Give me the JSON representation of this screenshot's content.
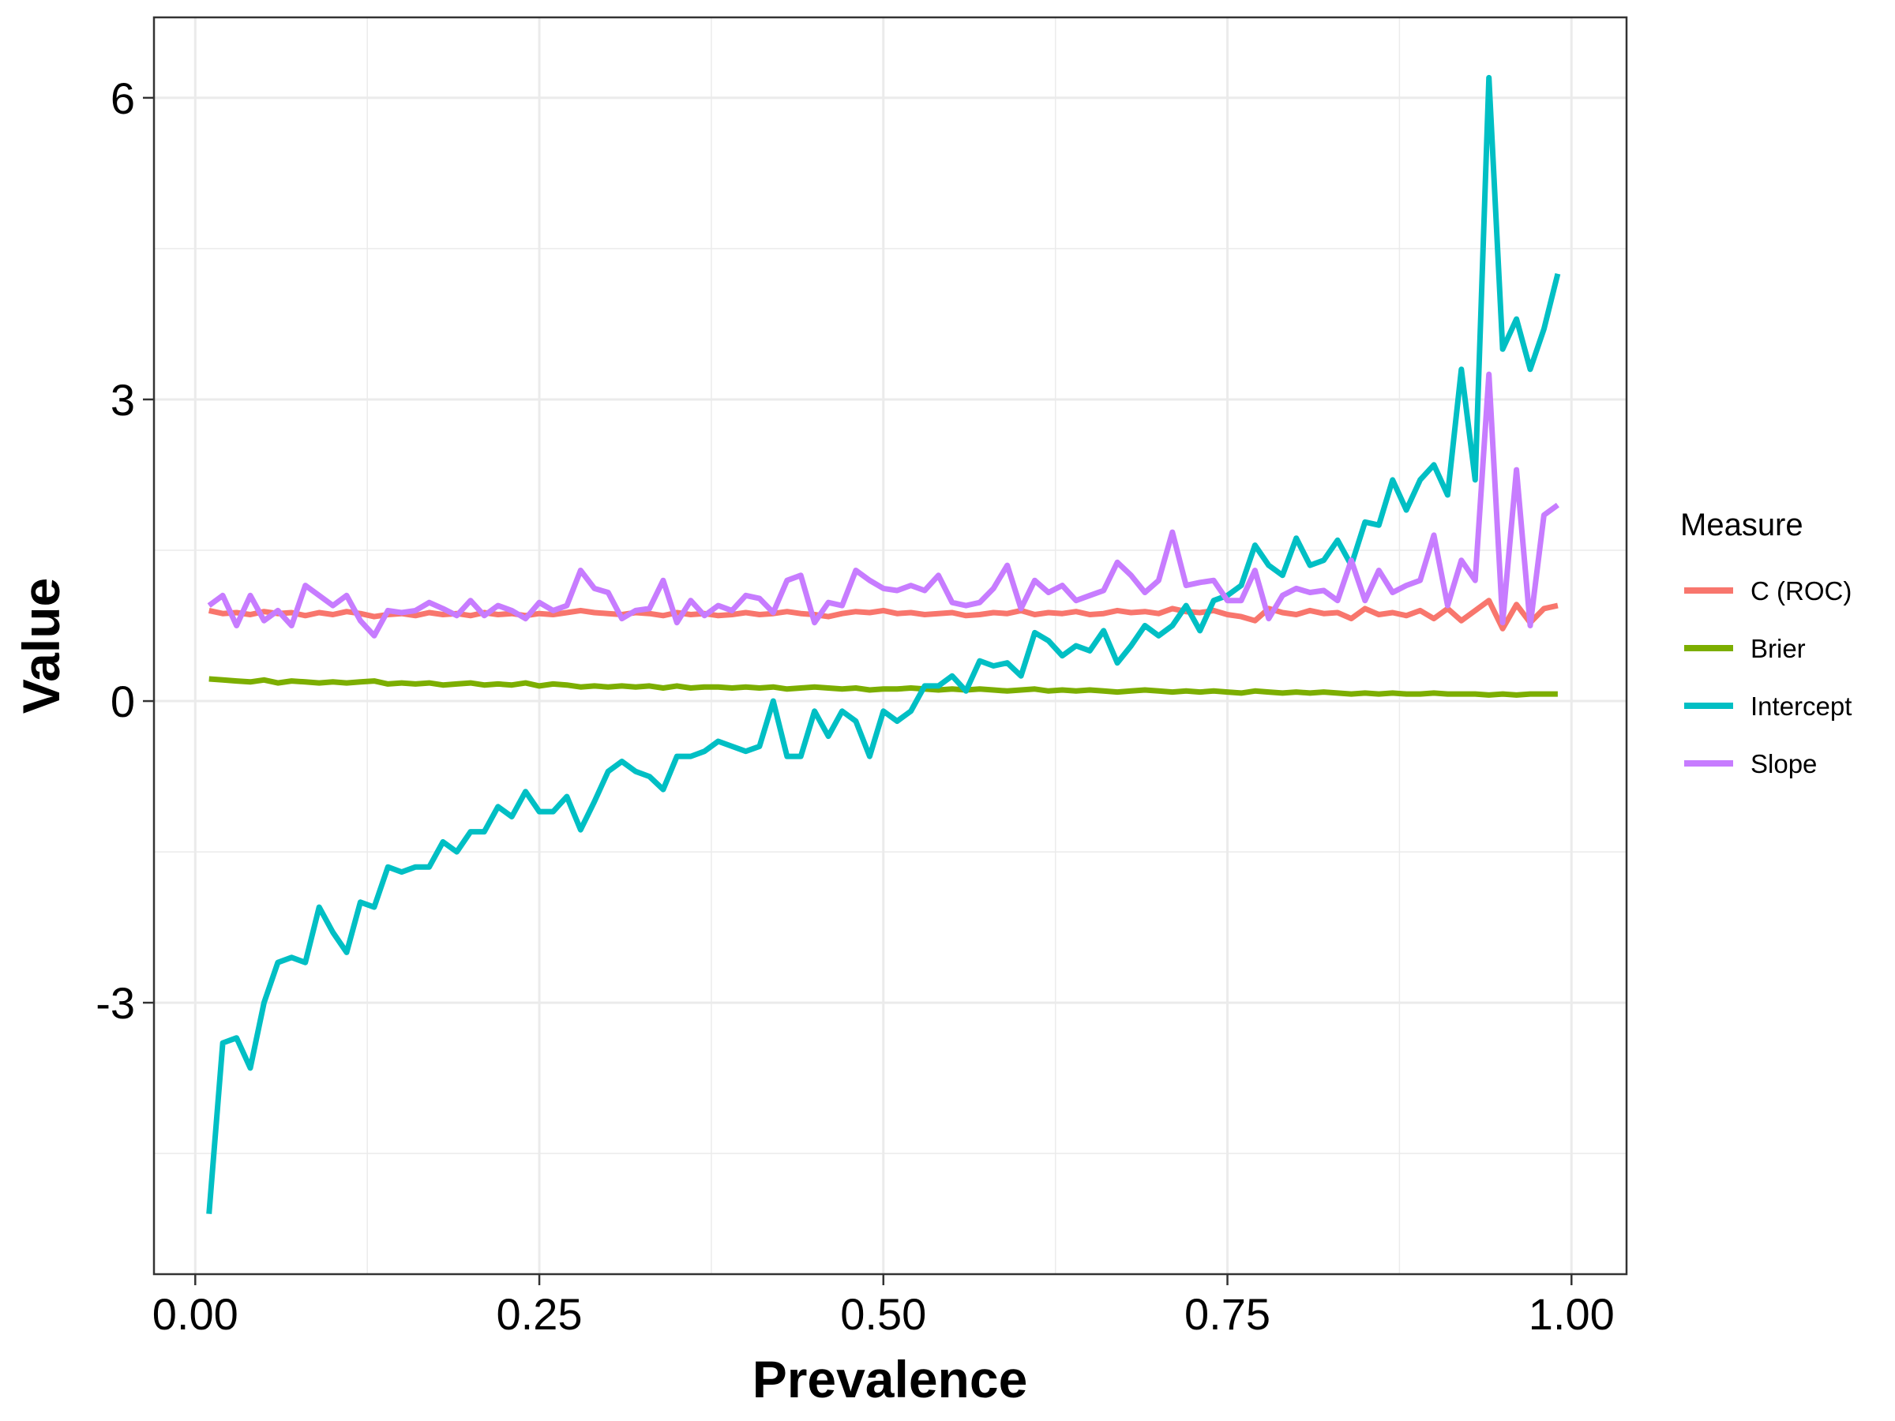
{
  "chart_data": {
    "type": "line",
    "title": "",
    "xlabel": "Prevalence",
    "ylabel": "Value",
    "xlim": [
      -0.03,
      1.04
    ],
    "ylim": [
      -5.7,
      6.8
    ],
    "x_ticks": [
      0,
      0.25,
      0.5,
      0.75,
      1
    ],
    "x_tick_labels": [
      "0.00",
      "0.25",
      "0.50",
      "0.75",
      "1.00"
    ],
    "y_ticks": [
      -3,
      0,
      3,
      6
    ],
    "y_tick_labels": [
      "-3",
      "0",
      "3",
      "6"
    ],
    "y_minor": [
      -4.5,
      -1.5,
      1.5,
      4.5
    ],
    "x_minor": [
      0.125,
      0.375,
      0.625,
      0.875
    ],
    "grid": true,
    "legend": {
      "title": "Measure",
      "position": "right"
    },
    "x": [
      0.01,
      0.02,
      0.03,
      0.04,
      0.05,
      0.06,
      0.07,
      0.08,
      0.09,
      0.1,
      0.11,
      0.12,
      0.13,
      0.14,
      0.15,
      0.16,
      0.17,
      0.18,
      0.19,
      0.2,
      0.21,
      0.22,
      0.23,
      0.24,
      0.25,
      0.26,
      0.27,
      0.28,
      0.29,
      0.3,
      0.31,
      0.32,
      0.33,
      0.34,
      0.35,
      0.36,
      0.37,
      0.38,
      0.39,
      0.4,
      0.41,
      0.42,
      0.43,
      0.44,
      0.45,
      0.46,
      0.47,
      0.48,
      0.49,
      0.5,
      0.51,
      0.52,
      0.53,
      0.54,
      0.55,
      0.56,
      0.57,
      0.58,
      0.59,
      0.6,
      0.61,
      0.62,
      0.63,
      0.64,
      0.65,
      0.66,
      0.67,
      0.68,
      0.69,
      0.7,
      0.71,
      0.72,
      0.73,
      0.74,
      0.75,
      0.76,
      0.77,
      0.78,
      0.79,
      0.8,
      0.81,
      0.82,
      0.83,
      0.84,
      0.85,
      0.86,
      0.87,
      0.88,
      0.89,
      0.9,
      0.91,
      0.92,
      0.93,
      0.94,
      0.95,
      0.96,
      0.97,
      0.98,
      0.99
    ],
    "series": [
      {
        "name": "C (ROC)",
        "color": "#F8766D",
        "values": [
          0.9,
          0.87,
          0.88,
          0.86,
          0.89,
          0.87,
          0.88,
          0.85,
          0.88,
          0.86,
          0.89,
          0.87,
          0.84,
          0.86,
          0.87,
          0.85,
          0.88,
          0.86,
          0.87,
          0.85,
          0.88,
          0.86,
          0.87,
          0.85,
          0.87,
          0.86,
          0.88,
          0.9,
          0.88,
          0.87,
          0.86,
          0.88,
          0.87,
          0.85,
          0.88,
          0.86,
          0.87,
          0.85,
          0.86,
          0.88,
          0.86,
          0.87,
          0.89,
          0.87,
          0.86,
          0.84,
          0.87,
          0.89,
          0.88,
          0.9,
          0.87,
          0.88,
          0.86,
          0.87,
          0.88,
          0.85,
          0.86,
          0.88,
          0.87,
          0.9,
          0.86,
          0.88,
          0.87,
          0.89,
          0.86,
          0.87,
          0.9,
          0.88,
          0.89,
          0.87,
          0.92,
          0.89,
          0.88,
          0.9,
          0.86,
          0.84,
          0.8,
          0.92,
          0.88,
          0.86,
          0.9,
          0.87,
          0.88,
          0.82,
          0.92,
          0.86,
          0.88,
          0.85,
          0.9,
          0.82,
          0.92,
          0.8,
          0.9,
          1.0,
          0.72,
          0.96,
          0.78,
          0.92,
          0.95
        ]
      },
      {
        "name": "Brier",
        "color": "#7CAE00",
        "values": [
          0.22,
          0.21,
          0.2,
          0.19,
          0.21,
          0.18,
          0.2,
          0.19,
          0.18,
          0.19,
          0.18,
          0.19,
          0.2,
          0.17,
          0.18,
          0.17,
          0.18,
          0.16,
          0.17,
          0.18,
          0.16,
          0.17,
          0.16,
          0.18,
          0.15,
          0.17,
          0.16,
          0.14,
          0.15,
          0.14,
          0.15,
          0.14,
          0.15,
          0.13,
          0.15,
          0.13,
          0.14,
          0.14,
          0.13,
          0.14,
          0.13,
          0.14,
          0.12,
          0.13,
          0.14,
          0.13,
          0.12,
          0.13,
          0.11,
          0.12,
          0.12,
          0.13,
          0.12,
          0.11,
          0.12,
          0.11,
          0.12,
          0.11,
          0.1,
          0.11,
          0.12,
          0.1,
          0.11,
          0.1,
          0.11,
          0.1,
          0.09,
          0.1,
          0.11,
          0.1,
          0.09,
          0.1,
          0.09,
          0.1,
          0.09,
          0.08,
          0.1,
          0.09,
          0.08,
          0.09,
          0.08,
          0.09,
          0.08,
          0.07,
          0.08,
          0.07,
          0.08,
          0.07,
          0.07,
          0.08,
          0.07,
          0.07,
          0.07,
          0.06,
          0.07,
          0.06,
          0.07,
          0.07,
          0.07
        ]
      },
      {
        "name": "Intercept",
        "color": "#00BFC4",
        "values": [
          -5.1,
          -3.4,
          -3.35,
          -3.65,
          -3.0,
          -2.6,
          -2.55,
          -2.6,
          -2.05,
          -2.3,
          -2.5,
          -2.0,
          -2.05,
          -1.65,
          -1.7,
          -1.65,
          -1.65,
          -1.4,
          -1.5,
          -1.3,
          -1.3,
          -1.05,
          -1.15,
          -0.9,
          -1.1,
          -1.1,
          -0.95,
          -1.28,
          -1.0,
          -0.7,
          -0.6,
          -0.7,
          -0.75,
          -0.88,
          -0.55,
          -0.55,
          -0.5,
          -0.4,
          -0.45,
          -0.5,
          -0.45,
          0.0,
          -0.55,
          -0.55,
          -0.1,
          -0.35,
          -0.1,
          -0.2,
          -0.55,
          -0.1,
          -0.2,
          -0.1,
          0.15,
          0.15,
          0.25,
          0.1,
          0.4,
          0.35,
          0.38,
          0.25,
          0.68,
          0.6,
          0.45,
          0.55,
          0.5,
          0.7,
          0.38,
          0.55,
          0.75,
          0.65,
          0.75,
          0.95,
          0.7,
          1.0,
          1.05,
          1.15,
          1.55,
          1.35,
          1.25,
          1.62,
          1.35,
          1.4,
          1.6,
          1.35,
          1.78,
          1.75,
          2.2,
          1.9,
          2.2,
          2.35,
          2.05,
          3.3,
          2.2,
          6.2,
          3.5,
          3.8,
          3.3,
          3.7,
          4.25
        ]
      },
      {
        "name": "Slope",
        "color": "#C77CFF",
        "values": [
          0.95,
          1.05,
          0.75,
          1.05,
          0.8,
          0.9,
          0.75,
          1.15,
          1.05,
          0.95,
          1.05,
          0.8,
          0.65,
          0.9,
          0.88,
          0.9,
          0.98,
          0.92,
          0.85,
          1.0,
          0.85,
          0.95,
          0.9,
          0.82,
          0.98,
          0.9,
          0.95,
          1.3,
          1.12,
          1.08,
          0.82,
          0.9,
          0.92,
          1.2,
          0.78,
          1.0,
          0.85,
          0.95,
          0.9,
          1.05,
          1.02,
          0.88,
          1.2,
          1.25,
          0.78,
          0.98,
          0.95,
          1.3,
          1.2,
          1.12,
          1.1,
          1.15,
          1.1,
          1.25,
          0.98,
          0.95,
          0.98,
          1.12,
          1.35,
          0.92,
          1.2,
          1.08,
          1.15,
          1.0,
          1.05,
          1.1,
          1.38,
          1.25,
          1.08,
          1.2,
          1.68,
          1.15,
          1.18,
          1.2,
          1.0,
          1.0,
          1.3,
          0.82,
          1.05,
          1.12,
          1.08,
          1.1,
          1.0,
          1.4,
          1.0,
          1.3,
          1.08,
          1.15,
          1.2,
          1.65,
          0.95,
          1.4,
          1.2,
          3.25,
          0.78,
          2.3,
          0.75,
          1.85,
          1.95
        ]
      }
    ]
  }
}
